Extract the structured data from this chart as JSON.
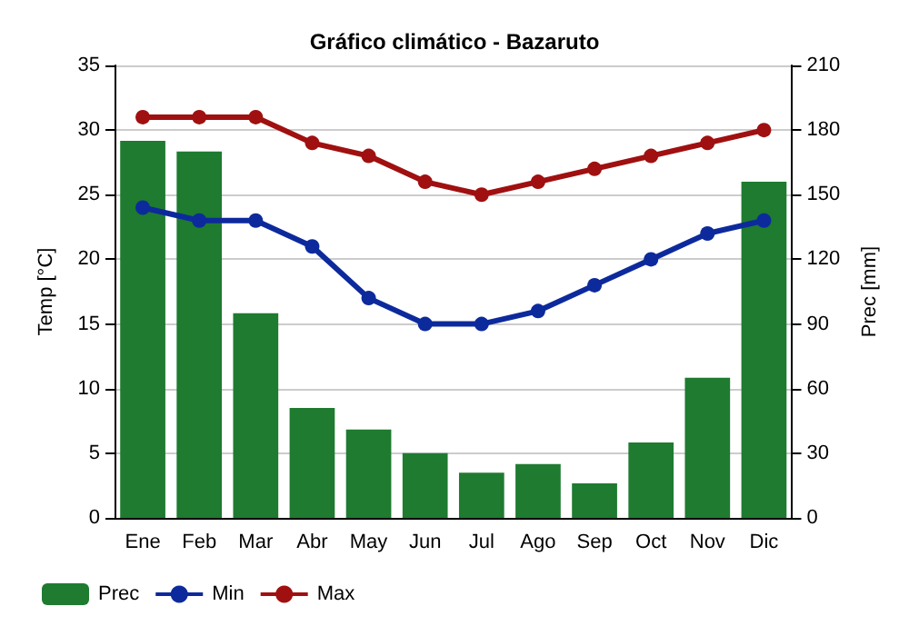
{
  "chart_data": {
    "type": "bar",
    "title": "Gráfico climático - Bazaruto",
    "ylabel": "Temp [°C]",
    "y2label": "Prec [mm]",
    "categories": [
      "Ene",
      "Feb",
      "Mar",
      "Abr",
      "May",
      "Jun",
      "Jul",
      "Ago",
      "Sep",
      "Oct",
      "Nov",
      "Dic"
    ],
    "series": [
      {
        "name": "Prec",
        "axis": "y2",
        "color": "#1e7b30",
        "values": [
          175,
          170,
          95,
          51,
          41,
          30,
          21,
          25,
          16,
          35,
          65,
          156
        ]
      },
      {
        "name": "Min",
        "type": "line",
        "color": "#0d2a9c",
        "values": [
          24,
          23,
          23,
          21,
          17,
          15,
          15,
          16,
          18,
          20,
          22,
          23
        ]
      },
      {
        "name": "Max",
        "type": "line",
        "color": "#a01010",
        "values": [
          31,
          31,
          31,
          29,
          28,
          26,
          25,
          26,
          27,
          28,
          29,
          30
        ]
      }
    ],
    "ylim": [
      0,
      35
    ],
    "yticks": [
      0,
      5,
      10,
      15,
      20,
      25,
      30,
      35
    ],
    "y2lim": [
      0,
      210
    ],
    "y2ticks": [
      0,
      30,
      60,
      90,
      120,
      150,
      180,
      210
    ],
    "grid": "y",
    "legend": "bottom left",
    "marker": "circle",
    "line_style": "solid"
  }
}
